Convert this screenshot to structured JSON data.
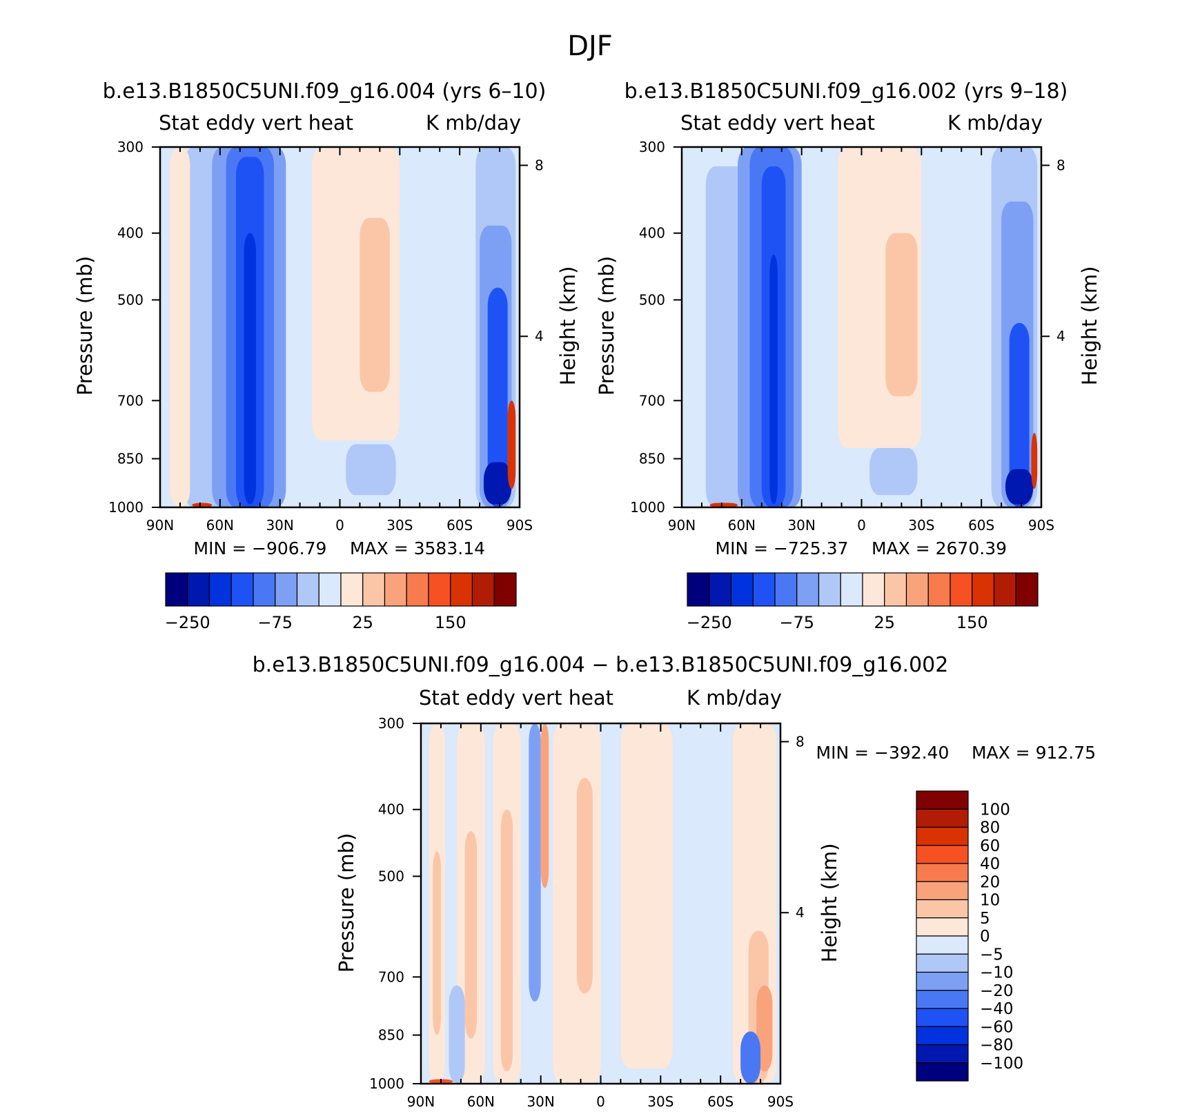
{
  "figure_title": "DJF",
  "colors": {
    "cmap16": [
      "#00007f",
      "#0018b0",
      "#0033dd",
      "#1f52f5",
      "#4a78f4",
      "#7da0f5",
      "#b0c8f8",
      "#dae9fb",
      "#fde7d8",
      "#fbc6a8",
      "#f8a37c",
      "#f77b4c",
      "#f65123",
      "#d93203",
      "#b01d04",
      "#800000"
    ]
  },
  "chart_data": [
    {
      "id": "panel1",
      "type": "heatmap",
      "title": "b.e13.B1850C5UNI.f09_g16.004 (yrs 6–10)",
      "left_label": "Stat eddy vert heat",
      "right_label": "K mb/day",
      "ylabel": "Pressure (mb)",
      "ylabel_right": "Height (km)",
      "x_ticks": [
        "90N",
        "60N",
        "30N",
        "0",
        "30S",
        "60S",
        "90S"
      ],
      "x_lim": [
        90,
        -90
      ],
      "y_ticks": [
        "300",
        "400",
        "500",
        "700",
        "850",
        "1000"
      ],
      "y_lim": [
        1000,
        300
      ],
      "y_scale": "log",
      "height_ticks": [
        "8",
        "4"
      ],
      "min_label": "MIN = −906.79",
      "max_label": "MAX = 3583.14",
      "colorbar_labels": [
        "−250",
        "−75",
        "25",
        "150"
      ],
      "structures": [
        {
          "lat": [
            78,
            58
          ],
          "p_top": 300,
          "p_bot": 1000,
          "level": 6
        },
        {
          "lat": [
            64,
            27
          ],
          "p_top": 300,
          "p_bot": 1000,
          "level": 5
        },
        {
          "lat": [
            57,
            33
          ],
          "p_top": 300,
          "p_bot": 1000,
          "level": 4
        },
        {
          "lat": [
            52,
            38
          ],
          "p_top": 310,
          "p_bot": 1000,
          "level": 3
        },
        {
          "lat": [
            48,
            42
          ],
          "p_top": 400,
          "p_bot": 990,
          "level": 2
        },
        {
          "lat": [
            14,
            -30
          ],
          "p_top": 300,
          "p_bot": 800,
          "level": 8
        },
        {
          "lat": [
            -10,
            -25
          ],
          "p_top": 380,
          "p_bot": 680,
          "level": 9
        },
        {
          "lat": [
            -3,
            -28
          ],
          "p_top": 810,
          "p_bot": 960,
          "level": 6
        },
        {
          "lat": [
            -68,
            -88
          ],
          "p_top": 300,
          "p_bot": 1000,
          "level": 6
        },
        {
          "lat": [
            -70,
            -86
          ],
          "p_top": 390,
          "p_bot": 1000,
          "level": 5
        },
        {
          "lat": [
            -74,
            -84
          ],
          "p_top": 480,
          "p_bot": 1000,
          "level": 3
        },
        {
          "lat": [
            -72,
            -86
          ],
          "p_top": 860,
          "p_bot": 990,
          "level": 1
        },
        {
          "lat": [
            -84,
            -88
          ],
          "p_top": 700,
          "p_bot": 940,
          "level": 13
        },
        {
          "lat": [
            85,
            75
          ],
          "p_top": 300,
          "p_bot": 1000,
          "level": 8
        },
        {
          "lat": [
            74,
            64
          ],
          "p_top": 985,
          "p_bot": 1000,
          "level": 13
        }
      ],
      "base_level": 7
    },
    {
      "id": "panel2",
      "type": "heatmap",
      "title": "b.e13.B1850C5UNI.f09_g16.002 (yrs 9–18)",
      "left_label": "Stat eddy vert heat",
      "right_label": "K mb/day",
      "ylabel": "Pressure (mb)",
      "ylabel_right": "Height (km)",
      "x_ticks": [
        "90N",
        "60N",
        "30N",
        "0",
        "30S",
        "60S",
        "90S"
      ],
      "x_lim": [
        90,
        -90
      ],
      "y_ticks": [
        "300",
        "400",
        "500",
        "700",
        "850",
        "1000"
      ],
      "y_lim": [
        1000,
        300
      ],
      "y_scale": "log",
      "height_ticks": [
        "8",
        "4"
      ],
      "min_label": "MIN = −725.37",
      "max_label": "MAX = 2670.39",
      "colorbar_labels": [
        "−250",
        "−75",
        "25",
        "150"
      ],
      "structures": [
        {
          "lat": [
            78,
            58
          ],
          "p_top": 320,
          "p_bot": 1000,
          "level": 6
        },
        {
          "lat": [
            62,
            30
          ],
          "p_top": 300,
          "p_bot": 1000,
          "level": 5
        },
        {
          "lat": [
            56,
            34
          ],
          "p_top": 300,
          "p_bot": 1000,
          "level": 4
        },
        {
          "lat": [
            50,
            38
          ],
          "p_top": 320,
          "p_bot": 1000,
          "level": 3
        },
        {
          "lat": [
            46,
            42
          ],
          "p_top": 430,
          "p_bot": 990,
          "level": 2
        },
        {
          "lat": [
            12,
            -30
          ],
          "p_top": 300,
          "p_bot": 820,
          "level": 8
        },
        {
          "lat": [
            -12,
            -28
          ],
          "p_top": 400,
          "p_bot": 690,
          "level": 9
        },
        {
          "lat": [
            -4,
            -28
          ],
          "p_top": 820,
          "p_bot": 960,
          "level": 6
        },
        {
          "lat": [
            -65,
            -88
          ],
          "p_top": 300,
          "p_bot": 1000,
          "level": 6
        },
        {
          "lat": [
            -70,
            -86
          ],
          "p_top": 360,
          "p_bot": 1000,
          "level": 5
        },
        {
          "lat": [
            -74,
            -84
          ],
          "p_top": 540,
          "p_bot": 1000,
          "level": 3
        },
        {
          "lat": [
            -72,
            -86
          ],
          "p_top": 880,
          "p_bot": 990,
          "level": 1
        },
        {
          "lat": [
            -85,
            -88
          ],
          "p_top": 780,
          "p_bot": 940,
          "level": 13
        },
        {
          "lat": [
            76,
            62
          ],
          "p_top": 985,
          "p_bot": 1000,
          "level": 13
        }
      ],
      "base_level": 7
    },
    {
      "id": "panel3",
      "type": "heatmap",
      "title": "b.e13.B1850C5UNI.f09_g16.004 − b.e13.B1850C5UNI.f09_g16.002",
      "left_label": "Stat eddy vert heat",
      "right_label": "K mb/day",
      "ylabel": "Pressure (mb)",
      "ylabel_right": "Height (km)",
      "x_ticks": [
        "90N",
        "60N",
        "30N",
        "0",
        "30S",
        "60S",
        "90S"
      ],
      "x_lim": [
        90,
        -90
      ],
      "y_ticks": [
        "300",
        "400",
        "500",
        "700",
        "850",
        "1000"
      ],
      "y_lim": [
        1000,
        300
      ],
      "y_scale": "log",
      "height_ticks": [
        "8",
        "4"
      ],
      "min_label": "MIN = −392.40",
      "max_label": "MAX = 912.75",
      "colorbar_labels": [
        "100",
        "80",
        "60",
        "40",
        "20",
        "10",
        "5",
        "0",
        "−5",
        "−10",
        "−20",
        "−40",
        "−60",
        "−80",
        "−100"
      ],
      "structures": [
        {
          "lat": [
            86,
            78
          ],
          "p_top": 300,
          "p_bot": 1000,
          "level": 8
        },
        {
          "lat": [
            84,
            80
          ],
          "p_top": 460,
          "p_bot": 850,
          "level": 9
        },
        {
          "lat": [
            72,
            58
          ],
          "p_top": 300,
          "p_bot": 1000,
          "level": 8
        },
        {
          "lat": [
            68,
            62
          ],
          "p_top": 430,
          "p_bot": 860,
          "level": 9
        },
        {
          "lat": [
            76,
            68
          ],
          "p_top": 720,
          "p_bot": 1000,
          "level": 6
        },
        {
          "lat": [
            54,
            40
          ],
          "p_top": 300,
          "p_bot": 1000,
          "level": 8
        },
        {
          "lat": [
            50,
            44
          ],
          "p_top": 400,
          "p_bot": 960,
          "level": 9
        },
        {
          "lat": [
            36,
            30
          ],
          "p_top": 300,
          "p_bot": 760,
          "level": 5
        },
        {
          "lat": [
            30,
            26
          ],
          "p_top": 300,
          "p_bot": 520,
          "level": 10
        },
        {
          "lat": [
            24,
            0
          ],
          "p_top": 300,
          "p_bot": 1000,
          "level": 8
        },
        {
          "lat": [
            12,
            4
          ],
          "p_top": 360,
          "p_bot": 740,
          "level": 9
        },
        {
          "lat": [
            -10,
            -36
          ],
          "p_top": 300,
          "p_bot": 950,
          "level": 8
        },
        {
          "lat": [
            -66,
            -88
          ],
          "p_top": 300,
          "p_bot": 1000,
          "level": 8
        },
        {
          "lat": [
            -74,
            -84
          ],
          "p_top": 600,
          "p_bot": 1000,
          "level": 9
        },
        {
          "lat": [
            -78,
            -86
          ],
          "p_top": 720,
          "p_bot": 960,
          "level": 10
        },
        {
          "lat": [
            -70,
            -80
          ],
          "p_top": 840,
          "p_bot": 1000,
          "level": 4
        },
        {
          "lat": [
            86,
            74
          ],
          "p_top": 985,
          "p_bot": 1000,
          "level": 12
        }
      ],
      "base_level": 7
    }
  ]
}
